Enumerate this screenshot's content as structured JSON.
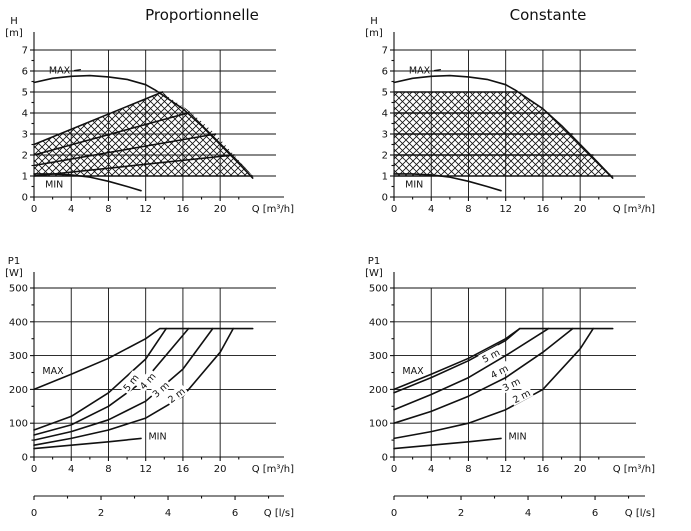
{
  "chart_data": [
    {
      "type": "line",
      "title": "Proportionnelle",
      "ylabel_line1": "H",
      "ylabel_line2": "[m]",
      "xlabel": "Q [m³/h]",
      "xlim": [
        0,
        26
      ],
      "ylim": [
        0,
        7
      ],
      "xticks": [
        0,
        4,
        8,
        12,
        16,
        20
      ],
      "yticks": [
        0,
        1,
        2,
        3,
        4,
        5,
        6,
        7
      ],
      "grid": true,
      "annotations": [
        "MAX",
        "MIN"
      ],
      "series": [
        {
          "name": "MAX",
          "x": [
            0,
            2,
            4,
            6,
            8,
            10,
            12,
            13,
            14,
            16,
            18,
            20,
            22,
            23.5
          ],
          "y": [
            5.45,
            5.65,
            5.75,
            5.78,
            5.72,
            5.6,
            5.35,
            5.1,
            4.8,
            4.2,
            3.4,
            2.5,
            1.6,
            0.9
          ]
        },
        {
          "name": "MIN",
          "x": [
            0,
            2,
            4,
            6,
            8,
            10,
            11.5
          ],
          "y": [
            1.1,
            1.1,
            1.05,
            0.95,
            0.75,
            0.5,
            0.3
          ]
        },
        {
          "x": [
            0,
            13.8
          ],
          "y": [
            2.5,
            5.0
          ]
        },
        {
          "x": [
            0,
            16.5
          ],
          "y": [
            2.0,
            4.0
          ]
        },
        {
          "x": [
            0,
            19.5
          ],
          "y": [
            1.5,
            3.0
          ]
        },
        {
          "x": [
            0,
            21.5
          ],
          "y": [
            1.0,
            2.0
          ]
        },
        {
          "x": [
            0,
            23.5
          ],
          "y": [
            1.0,
            1.0
          ]
        }
      ],
      "hatched_region": {
        "x": [
          0,
          13.8,
          14.5,
          16.5,
          18,
          19.5,
          21.5,
          23.5,
          0
        ],
        "y": [
          2.5,
          5.0,
          4.75,
          4.15,
          3.6,
          3.0,
          2.0,
          1.0,
          1.0
        ]
      }
    },
    {
      "type": "line",
      "title": "Constante",
      "ylabel_line1": "H",
      "ylabel_line2": "[m]",
      "xlabel": "Q [m³/h]",
      "xlim": [
        0,
        26
      ],
      "ylim": [
        0,
        7
      ],
      "xticks": [
        0,
        4,
        8,
        12,
        16,
        20
      ],
      "yticks": [
        0,
        1,
        2,
        3,
        4,
        5,
        6,
        7
      ],
      "grid": true,
      "annotations": [
        "MAX",
        "MIN"
      ],
      "series": [
        {
          "name": "MAX",
          "x": [
            0,
            2,
            4,
            6,
            8,
            10,
            12,
            13,
            14,
            16,
            18,
            20,
            22,
            23.5
          ],
          "y": [
            5.45,
            5.65,
            5.75,
            5.78,
            5.72,
            5.6,
            5.35,
            5.1,
            4.8,
            4.2,
            3.4,
            2.5,
            1.6,
            0.9
          ]
        },
        {
          "name": "MIN",
          "x": [
            0,
            2,
            4,
            6,
            8,
            10,
            11.5
          ],
          "y": [
            1.1,
            1.1,
            1.05,
            0.95,
            0.75,
            0.5,
            0.3
          ]
        },
        {
          "x": [
            0,
            13.2
          ],
          "y": [
            5.0,
            5.0
          ]
        },
        {
          "x": [
            0,
            16.6
          ],
          "y": [
            4.0,
            4.0
          ]
        },
        {
          "x": [
            0,
            19.2
          ],
          "y": [
            3.0,
            3.0
          ]
        },
        {
          "x": [
            0,
            21.4
          ],
          "y": [
            2.0,
            2.0
          ]
        },
        {
          "x": [
            0,
            23.5
          ],
          "y": [
            1.0,
            1.0
          ]
        }
      ],
      "hatched_region": {
        "x": [
          0,
          13.2,
          14,
          16,
          18,
          20,
          22,
          23.5,
          0
        ],
        "y": [
          5.0,
          5.0,
          4.8,
          4.2,
          3.4,
          2.5,
          1.6,
          1.0,
          1.0
        ]
      }
    },
    {
      "type": "line",
      "ylabel_line1": "P1",
      "ylabel_line2": "[W]",
      "xlabel": "Q [m³/h]",
      "xlabel2": "Q [l/s]",
      "xlim": [
        0,
        26
      ],
      "ylim": [
        0,
        500
      ],
      "xticks": [
        0,
        4,
        8,
        12,
        16,
        20
      ],
      "x2ticks": [
        0,
        2,
        4,
        6
      ],
      "yticks": [
        0,
        100,
        200,
        300,
        400,
        500
      ],
      "grid": true,
      "annotations": [
        "MAX",
        "MIN",
        "5 m",
        "4 m",
        "3 m",
        "2 m"
      ],
      "series": [
        {
          "name": "MAX",
          "x": [
            0,
            4,
            8,
            12,
            13.5,
            23.5
          ],
          "y": [
            200,
            245,
            292,
            350,
            380,
            380
          ]
        },
        {
          "name": "5 m",
          "x": [
            0,
            4,
            8,
            12,
            14.2
          ],
          "y": [
            80,
            120,
            190,
            290,
            380
          ]
        },
        {
          "name": "4 m",
          "x": [
            0,
            4,
            8,
            12,
            16.6
          ],
          "y": [
            65,
            95,
            150,
            230,
            380
          ]
        },
        {
          "name": "3 m",
          "x": [
            0,
            4,
            8,
            12,
            16,
            19.2
          ],
          "y": [
            50,
            75,
            110,
            165,
            260,
            380
          ]
        },
        {
          "name": "2 m",
          "x": [
            0,
            4,
            8,
            12,
            16,
            20,
            21.4
          ],
          "y": [
            35,
            55,
            80,
            115,
            180,
            310,
            380
          ]
        },
        {
          "name": "MIN",
          "x": [
            0,
            4,
            8,
            11.5
          ],
          "y": [
            25,
            35,
            45,
            55
          ]
        }
      ]
    },
    {
      "type": "line",
      "ylabel_line1": "P1",
      "ylabel_line2": "[W]",
      "xlabel": "Q [m³/h]",
      "xlabel2": "Q [l/s]",
      "xlim": [
        0,
        26
      ],
      "ylim": [
        0,
        500
      ],
      "xticks": [
        0,
        4,
        8,
        12,
        16,
        20
      ],
      "x2ticks": [
        0,
        2,
        4,
        6
      ],
      "yticks": [
        0,
        100,
        200,
        300,
        400,
        500
      ],
      "grid": true,
      "annotations": [
        "MAX",
        "MIN",
        "5 m",
        "4 m",
        "3 m",
        "2 m"
      ],
      "series": [
        {
          "name": "MAX",
          "x": [
            0,
            4,
            8,
            12,
            13.5,
            23.5
          ],
          "y": [
            200,
            245,
            292,
            350,
            380,
            380
          ]
        },
        {
          "name": "5 m",
          "x": [
            0,
            4,
            8,
            12,
            13.5
          ],
          "y": [
            190,
            235,
            285,
            345,
            380
          ]
        },
        {
          "name": "4 m",
          "x": [
            0,
            4,
            8,
            12,
            16.6
          ],
          "y": [
            140,
            185,
            235,
            300,
            380
          ]
        },
        {
          "name": "3 m",
          "x": [
            0,
            4,
            8,
            12,
            16,
            19.2
          ],
          "y": [
            100,
            135,
            180,
            235,
            310,
            380
          ]
        },
        {
          "name": "2 m",
          "x": [
            0,
            4,
            8,
            12,
            16,
            20,
            21.4
          ],
          "y": [
            55,
            75,
            100,
            140,
            200,
            320,
            380
          ]
        },
        {
          "name": "MIN",
          "x": [
            0,
            4,
            8,
            11.5
          ],
          "y": [
            25,
            35,
            45,
            55
          ]
        }
      ]
    }
  ]
}
